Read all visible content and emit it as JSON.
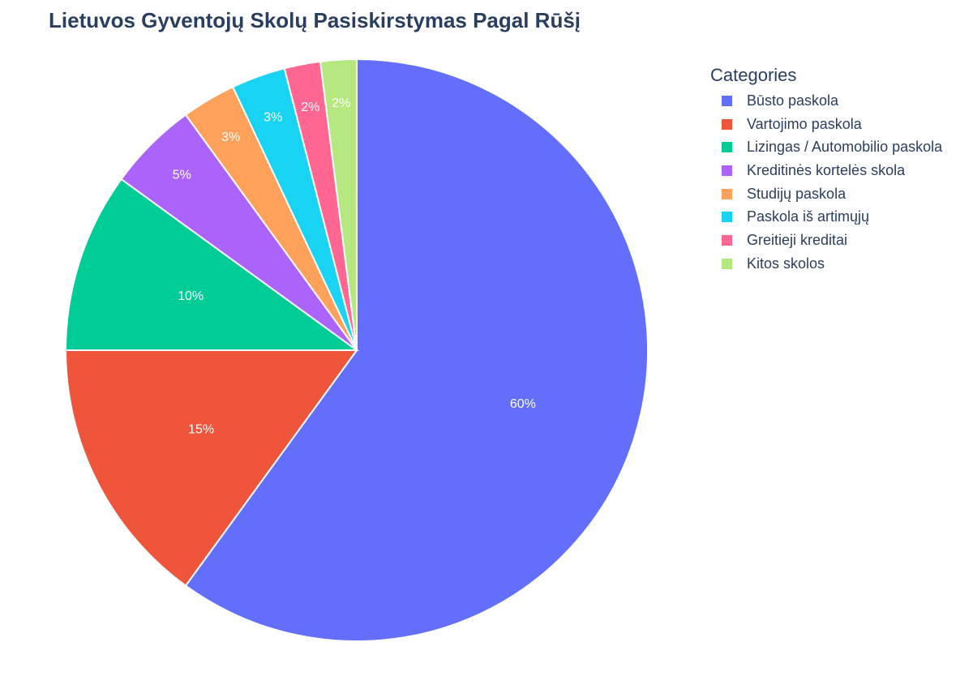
{
  "chart_data": {
    "type": "pie",
    "title": "Lietuvos Gyventojų Skolų Pasiskirstymas Pagal Rūšį",
    "legend_title": "Categories",
    "legend_position": "right",
    "slices": [
      {
        "label": "Būsto paskola",
        "value": 60,
        "text": "60%",
        "color": "#636efa"
      },
      {
        "label": "Vartojimo paskola",
        "value": 15,
        "text": "15%",
        "color": "#ef553b"
      },
      {
        "label": "Lizingas / Automobilio paskola",
        "value": 10,
        "text": "10%",
        "color": "#00cc96"
      },
      {
        "label": "Kreditinės kortelės skola",
        "value": 5,
        "text": "5%",
        "color": "#ab63fa"
      },
      {
        "label": "Studijų paskola",
        "value": 3,
        "text": "3%",
        "color": "#ffa15a"
      },
      {
        "label": "Paskola iš artimųjų",
        "value": 3,
        "text": "3%",
        "color": "#19d3f3"
      },
      {
        "label": "Greitieji kreditai",
        "value": 2,
        "text": "2%",
        "color": "#ff6692"
      },
      {
        "label": "Kitos skolos",
        "value": 2,
        "text": "2%",
        "color": "#b6e880"
      }
    ]
  }
}
